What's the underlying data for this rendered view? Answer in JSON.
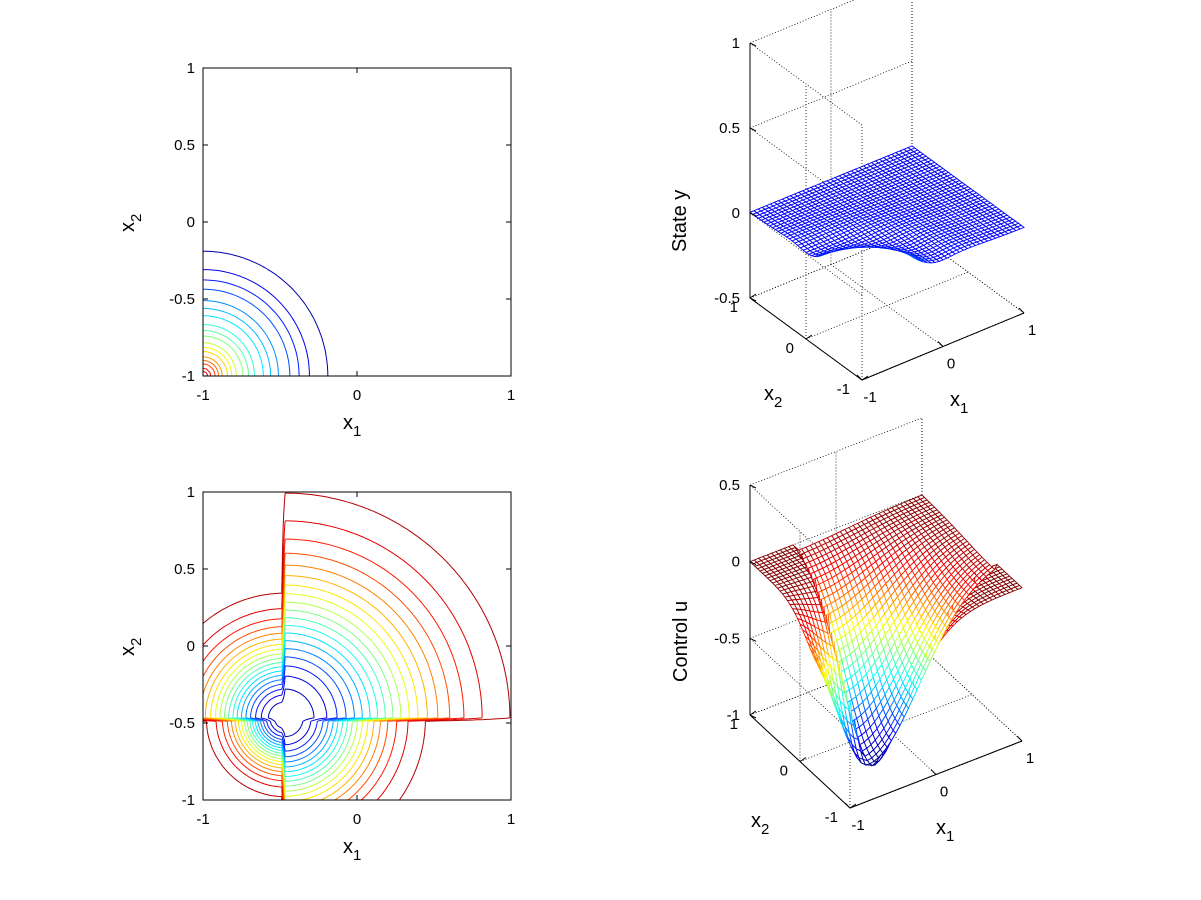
{
  "figure": {
    "background": "#ffffff",
    "colormap": "jet"
  },
  "chart_data": [
    {
      "id": "state-contour",
      "type": "contour",
      "xlabel": "x",
      "xlabel_sub": "1",
      "ylabel": "x",
      "ylabel_sub": "2",
      "xlim": [
        -1,
        1
      ],
      "ylim": [
        -1,
        1
      ],
      "xticks": [
        "-1",
        "0",
        "1"
      ],
      "yticks": [
        "-1",
        "-0.5",
        "0",
        "0.5",
        "1"
      ],
      "grid": false,
      "peak": {
        "x": -1,
        "y": -1,
        "value": 0.65
      },
      "levels": [
        0.03,
        0.07,
        0.1,
        0.13,
        0.17,
        0.2,
        0.23,
        0.27,
        0.3,
        0.33,
        0.37,
        0.4,
        0.43,
        0.47,
        0.5,
        0.53,
        0.57,
        0.6
      ],
      "outer_contour_extent": {
        "x_max": -0.12,
        "y_max": -0.1
      }
    },
    {
      "id": "state-surface",
      "type": "surface",
      "xlabel": "x",
      "xlabel_sub": "1",
      "ylabel": "x",
      "ylabel_sub": "2",
      "zlabel": "State y",
      "xlim": [
        -1,
        1
      ],
      "ylim": [
        -1,
        1
      ],
      "zlim": [
        -0.5,
        1
      ],
      "xticks": [
        "-1",
        "0",
        "1"
      ],
      "yticks": [
        "-1",
        "0",
        "1"
      ],
      "zticks": [
        "-0.5",
        "0",
        "0.5",
        "1"
      ],
      "grid": true,
      "peak": {
        "x1": -1,
        "x2": -1,
        "value": 0.65
      },
      "baseline": 0
    },
    {
      "id": "control-contour",
      "type": "contour",
      "xlabel": "x",
      "xlabel_sub": "1",
      "ylabel": "x",
      "ylabel_sub": "2",
      "xlim": [
        -1,
        1
      ],
      "ylim": [
        -1,
        1
      ],
      "xticks": [
        "-1",
        "0",
        "1"
      ],
      "yticks": [
        "-1",
        "-0.5",
        "0",
        "0.5",
        "1"
      ],
      "grid": false,
      "minimum": {
        "x": -0.47,
        "y": -0.47,
        "value": -1.0
      },
      "levels": [
        -0.95,
        -0.9,
        -0.85,
        -0.8,
        -0.75,
        -0.7,
        -0.65,
        -0.6,
        -0.55,
        -0.5,
        -0.45,
        -0.4,
        -0.35,
        -0.3,
        -0.25,
        -0.2,
        -0.15,
        -0.1,
        -0.05
      ],
      "outer_contour_extent": {
        "x_max": 0.74,
        "y_max": 0.74
      }
    },
    {
      "id": "control-surface",
      "type": "surface",
      "xlabel": "x",
      "xlabel_sub": "1",
      "ylabel": "x",
      "ylabel_sub": "2",
      "zlabel": "Control u",
      "xlim": [
        -1,
        1
      ],
      "ylim": [
        -1,
        1
      ],
      "zlim": [
        -1,
        0.5
      ],
      "xticks": [
        "-1",
        "0",
        "1"
      ],
      "yticks": [
        "-1",
        "0",
        "1"
      ],
      "zticks": [
        "-1",
        "-0.5",
        "0",
        "0.5"
      ],
      "grid": true,
      "minimum": {
        "x1": -0.47,
        "x2": -0.47,
        "value": -1.0
      },
      "baseline": 0
    }
  ]
}
